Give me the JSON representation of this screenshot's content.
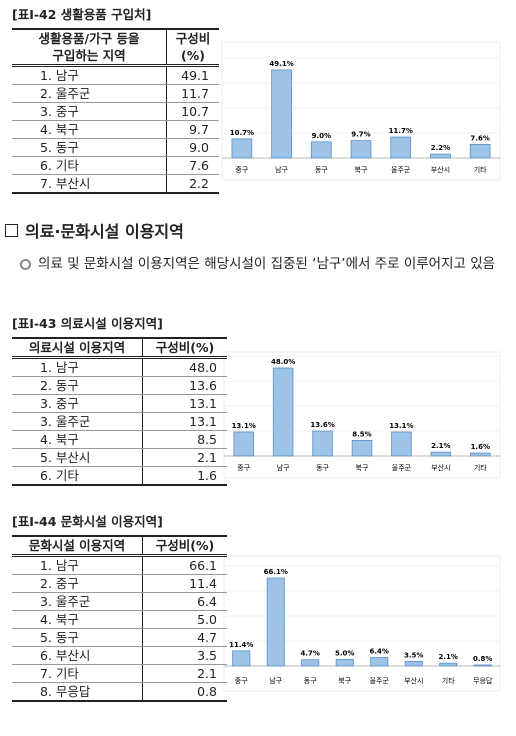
{
  "sections": [
    {
      "title": "[표Ⅰ-42 생활용품 구입처]",
      "table": {
        "header": [
          [
            "생활용품/가구 등을",
            "구입하는 지역"
          ],
          [
            "구성비",
            "(%)"
          ]
        ],
        "rows": [
          [
            "1. 남구",
            "49.1"
          ],
          [
            "2. 울주군",
            "11.7"
          ],
          [
            "3. 중구",
            "10.7"
          ],
          [
            "4. 북구",
            "9.7"
          ],
          [
            "5. 동구",
            "9.0"
          ],
          [
            "6. 기타",
            "7.6"
          ],
          [
            "7. 부산시",
            "2.2"
          ]
        ]
      }
    },
    {
      "title": "[표Ⅰ-43 의료시설 이용지역]",
      "table": {
        "header": [
          [
            "의료시설 이용지역"
          ],
          [
            "구성비(%)"
          ]
        ],
        "rows": [
          [
            "1. 남구",
            "48.0"
          ],
          [
            "2. 동구",
            "13.6"
          ],
          [
            "3. 중구",
            "13.1"
          ],
          [
            "3. 울주군",
            "13.1"
          ],
          [
            "4. 북구",
            "8.5"
          ],
          [
            "5. 부산시",
            "2.1"
          ],
          [
            "6. 기타",
            "1.6"
          ]
        ]
      }
    },
    {
      "title": "[표Ⅰ-44 문화시설 이용지역]",
      "table": {
        "header": [
          [
            "문화시설 이용지역"
          ],
          [
            "구성비(%)"
          ]
        ],
        "rows": [
          [
            "1. 남구",
            "66.1"
          ],
          [
            "2. 중구",
            "11.4"
          ],
          [
            "3. 울주군",
            "6.4"
          ],
          [
            "4. 북구",
            "5.0"
          ],
          [
            "5. 동구",
            "4.7"
          ],
          [
            "6. 부산시",
            "3.5"
          ],
          [
            "7. 기타",
            "2.1"
          ],
          [
            "8. 무응답",
            "0.8"
          ]
        ]
      }
    }
  ],
  "heading": "의료·문화시설 이용지역",
  "bullet": "의료 및 문화시설 이용지역은 해당시설이 집중된 ‘남구’에서 주로 이루어지고 있음",
  "chart_data": [
    {
      "type": "bar",
      "color": "#9dc3e6",
      "categories": [
        "중구",
        "남구",
        "동구",
        "북구",
        "울주군",
        "부산시",
        "기타"
      ],
      "values": [
        10.7,
        49.1,
        9.0,
        9.7,
        11.7,
        2.2,
        7.6
      ],
      "value_labels": [
        "10.7%",
        "49.1%",
        "9.0%",
        "9.7%",
        "11.7%",
        "2.2%",
        "7.6%"
      ]
    },
    {
      "type": "bar",
      "color": "#9dc3e6",
      "categories": [
        "중구",
        "남구",
        "동구",
        "북구",
        "울주군",
        "부산시",
        "기타"
      ],
      "values": [
        13.1,
        48.0,
        13.6,
        8.5,
        13.1,
        2.1,
        1.6
      ],
      "value_labels": [
        "13.1%",
        "48.0%",
        "13.6%",
        "8.5%",
        "13.1%",
        "2.1%",
        "1.6%"
      ]
    },
    {
      "type": "bar",
      "color": "#9dc3e6",
      "categories": [
        "중구",
        "남구",
        "동구",
        "북구",
        "울주군",
        "부산시",
        "기타",
        "무응답"
      ],
      "values": [
        11.4,
        66.1,
        4.7,
        5.0,
        6.4,
        3.5,
        2.1,
        0.8
      ],
      "value_labels": [
        "11.4%",
        "66.1%",
        "4.7%",
        "5.0%",
        "6.4%",
        "3.5%",
        "2.1%",
        "0.8%"
      ]
    }
  ]
}
